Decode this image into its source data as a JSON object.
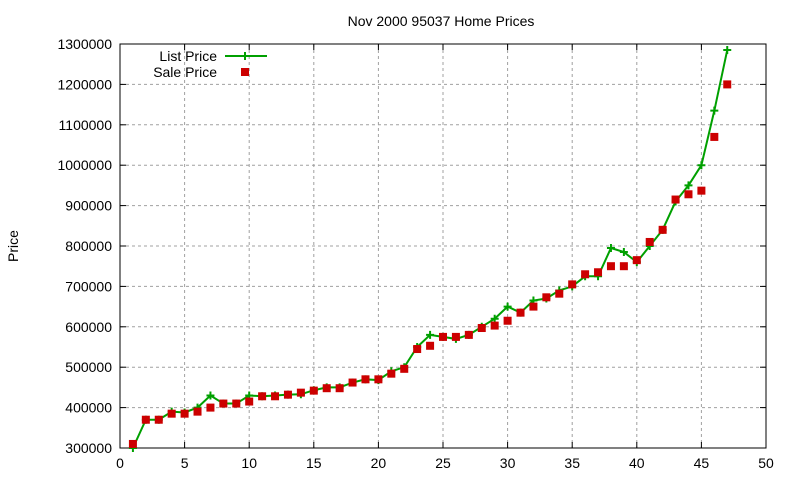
{
  "chart_data": {
    "type": "line",
    "title": "Nov 2000 95037 Home Prices",
    "xlabel": "",
    "ylabel": "Price",
    "xlim": [
      0,
      50
    ],
    "ylim": [
      300000,
      1300000
    ],
    "xticks": [
      0,
      5,
      10,
      15,
      20,
      25,
      30,
      35,
      40,
      45,
      50
    ],
    "yticks": [
      300000,
      400000,
      500000,
      600000,
      700000,
      800000,
      900000,
      1000000,
      1100000,
      1200000,
      1300000
    ],
    "grid": true,
    "legend_position": "top-left",
    "x": [
      1,
      2,
      3,
      4,
      5,
      6,
      7,
      8,
      9,
      10,
      11,
      12,
      13,
      14,
      15,
      16,
      17,
      18,
      19,
      20,
      21,
      22,
      23,
      24,
      25,
      26,
      27,
      28,
      29,
      30,
      31,
      32,
      33,
      34,
      35,
      36,
      37,
      38,
      39,
      40,
      41,
      42,
      43,
      44,
      45,
      46,
      47
    ],
    "series": [
      {
        "name": "List Price",
        "style": "linespoints",
        "color": "#00a000",
        "values": [
          300000,
          370000,
          370000,
          390000,
          388000,
          400000,
          430000,
          410000,
          410000,
          430000,
          428000,
          430000,
          432000,
          433000,
          443000,
          450000,
          450000,
          462000,
          470000,
          468000,
          490000,
          500000,
          550000,
          580000,
          575000,
          570000,
          580000,
          600000,
          620000,
          650000,
          635000,
          665000,
          670000,
          690000,
          700000,
          725000,
          725000,
          795000,
          785000,
          760000,
          800000,
          840000,
          910000,
          950000,
          1000000,
          1135000,
          1285000
        ]
      },
      {
        "name": "Sale Price",
        "style": "points",
        "color": "#cc0000",
        "values": [
          310000,
          370000,
          370000,
          385000,
          385000,
          390000,
          400000,
          410000,
          410000,
          415000,
          428000,
          428000,
          432000,
          437000,
          442000,
          448000,
          448000,
          462000,
          470000,
          470000,
          484000,
          496000,
          545000,
          553000,
          575000,
          575000,
          580000,
          597000,
          603000,
          615000,
          635000,
          650000,
          673000,
          682000,
          705000,
          730000,
          735000,
          750000,
          750000,
          765000,
          810000,
          840000,
          915000,
          928000,
          937000,
          1070000,
          1200000
        ]
      }
    ]
  }
}
